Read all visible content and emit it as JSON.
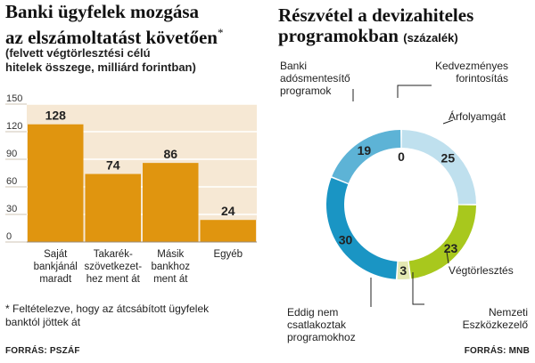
{
  "left": {
    "title_line1": "Banki ügyfelek mozgása",
    "title_line2": "az elszámoltatást követően",
    "title_mark": "*",
    "subtitle_line1": "(felvett végtörlesztési célú",
    "subtitle_line2": "hitelek összege, milliárd forintban)",
    "footnote_line1": "* Feltételezve, hogy az átcsábított ügyfelek",
    "footnote_line2": "banktól jöttek át",
    "source": "FORRÁS: PSZÁF"
  },
  "right": {
    "title_line1": "Részvétel a devizahiteles",
    "title_line2": "programokban",
    "title_unit": "(százalék)",
    "source": "FORRÁS: MNB"
  },
  "chart_data": [
    {
      "type": "bar",
      "categories": [
        [
          "Saját",
          "bankjánál",
          "maradt"
        ],
        [
          "Takarék-",
          "szövetkezet-",
          "hez ment át"
        ],
        [
          "Másik",
          "bankhoz",
          "ment át"
        ],
        [
          "Egyéb"
        ]
      ],
      "values": [
        128,
        74,
        86,
        24
      ],
      "yticks": [
        0,
        30,
        60,
        90,
        120,
        150
      ],
      "ylim": [
        0,
        150
      ],
      "grid": true,
      "colors": {
        "bar": "#e0950f",
        "background": "#f6e8d4",
        "grid": "#ffffff"
      }
    },
    {
      "type": "pie",
      "variant": "donut",
      "slices": [
        {
          "label": [
            "Kedvezményes",
            "forintosítás"
          ],
          "value": 0,
          "color": "#9fcfe3"
        },
        {
          "label": [
            "Árfolyamgát"
          ],
          "value": 25,
          "color": "#bfe0ee"
        },
        {
          "label": [
            "Végtörlesztés"
          ],
          "value": 23,
          "color": "#a8c81d"
        },
        {
          "label": [
            "Nemzeti",
            "Eszközkezelő"
          ],
          "value": 3,
          "color": "#e4e8b2"
        },
        {
          "label": [
            "Eddig nem",
            "csatlakoztak",
            "programokhoz"
          ],
          "value": 30,
          "color": "#1a95c4"
        },
        {
          "label": [
            "Banki",
            "adósmentesítő",
            "programok"
          ],
          "value": 19,
          "color": "#5db3d6"
        }
      ]
    }
  ]
}
